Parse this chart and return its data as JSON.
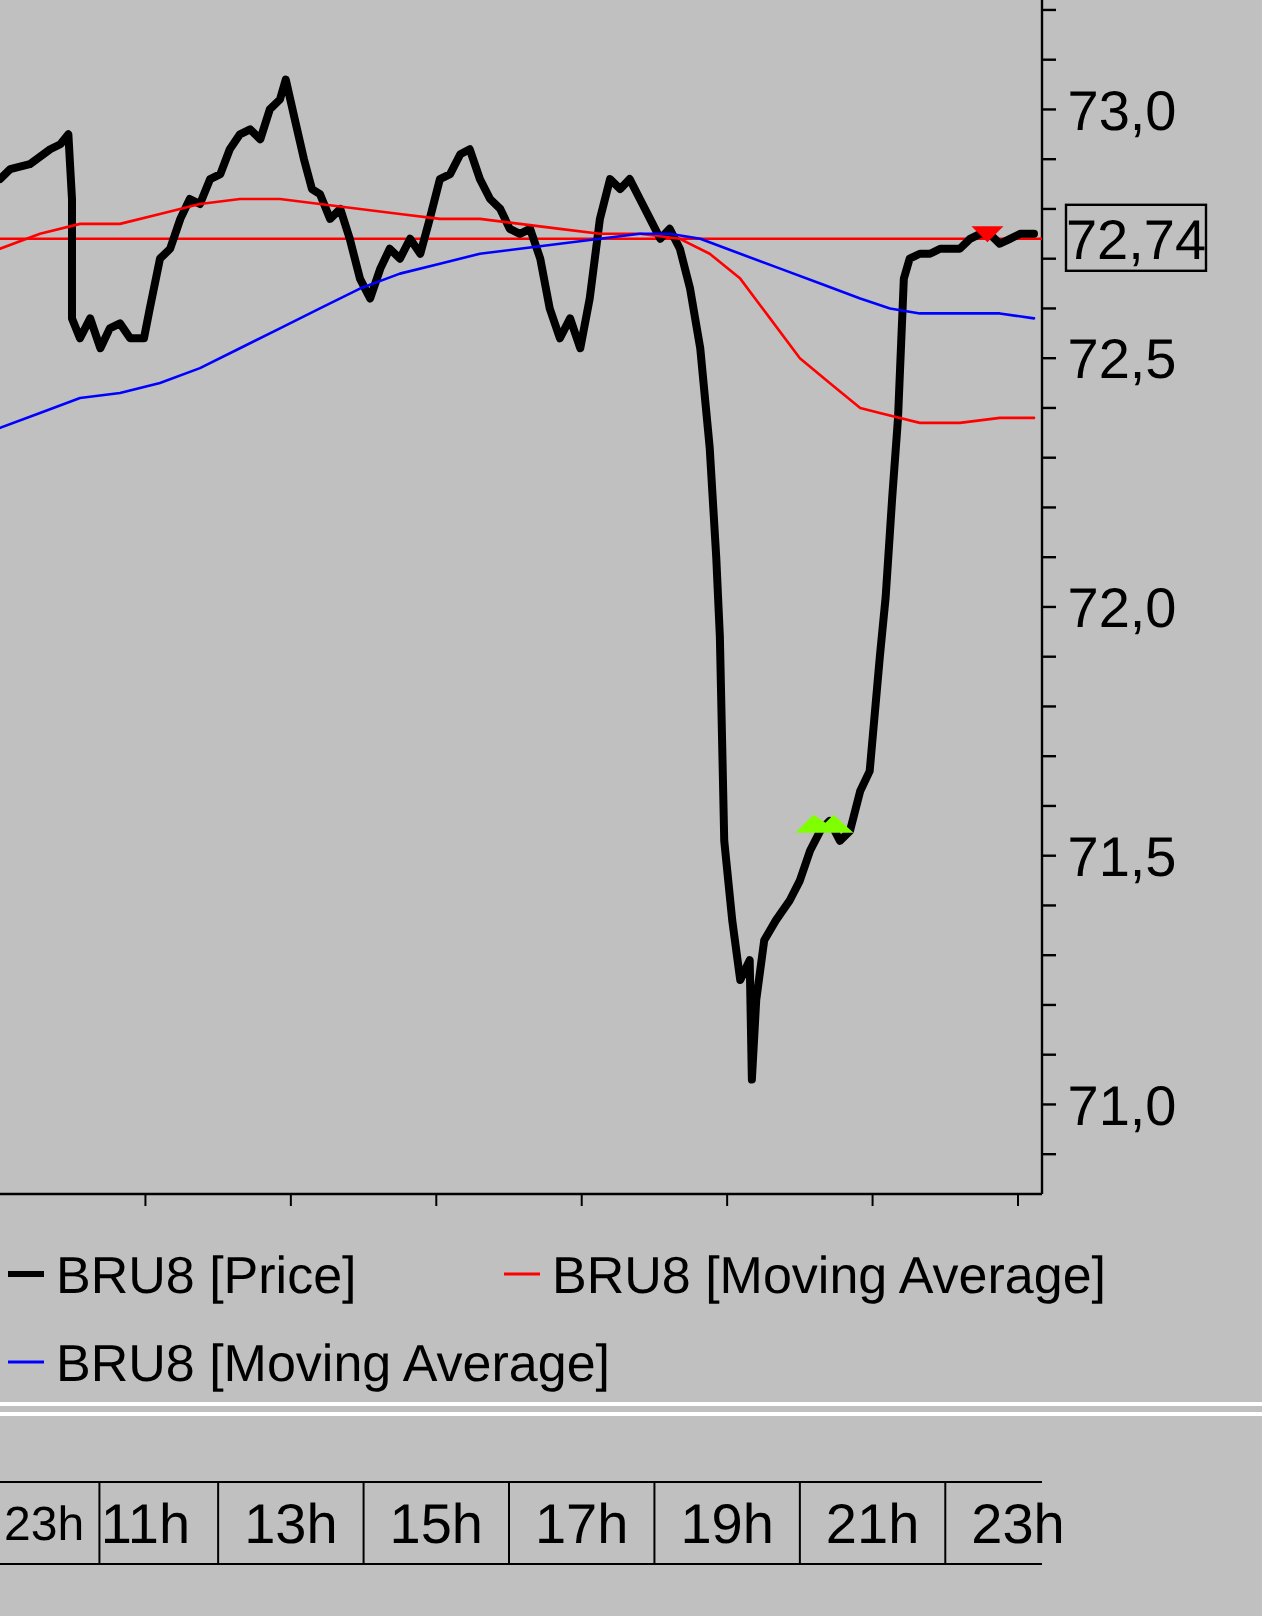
{
  "chart_data": {
    "type": "line",
    "xlim": [
      9,
      23.33
    ],
    "annotations": [
      "23h"
    ],
    "ylim": [
      70.82,
      73.22
    ],
    "xticks": [
      {
        "value": 11,
        "label": "11h"
      },
      {
        "value": 13,
        "label": "13h"
      },
      {
        "value": 15,
        "label": "15h"
      },
      {
        "value": 17,
        "label": "17h"
      },
      {
        "value": 19,
        "label": "19h"
      },
      {
        "value": 21,
        "label": "21h"
      },
      {
        "value": 23,
        "label": "23h"
      }
    ],
    "yticks": [
      {
        "value": 70.9,
        "label": null
      },
      {
        "value": 71.0,
        "label": "71,0"
      },
      {
        "value": 71.1,
        "label": null
      },
      {
        "value": 71.2,
        "label": null
      },
      {
        "value": 71.3,
        "label": null
      },
      {
        "value": 71.4,
        "label": null
      },
      {
        "value": 71.5,
        "label": "71,5"
      },
      {
        "value": 71.6,
        "label": null
      },
      {
        "value": 71.7,
        "label": null
      },
      {
        "value": 71.8,
        "label": null
      },
      {
        "value": 71.9,
        "label": null
      },
      {
        "value": 72.0,
        "label": "72,0"
      },
      {
        "value": 72.1,
        "label": null
      },
      {
        "value": 72.2,
        "label": null
      },
      {
        "value": 72.3,
        "label": null
      },
      {
        "value": 72.4,
        "label": null
      },
      {
        "value": 72.5,
        "label": "72,5"
      },
      {
        "value": 72.6,
        "label": null
      },
      {
        "value": 72.7,
        "label": null
      },
      {
        "value": 72.8,
        "label": null
      },
      {
        "value": 72.9,
        "label": null
      },
      {
        "value": 73.0,
        "label": "73,0"
      },
      {
        "value": 73.1,
        "label": null
      },
      {
        "value": 73.2,
        "label": null
      }
    ],
    "grid": false,
    "legend": "bottom",
    "marker": "none",
    "line_style": "solid",
    "ref_lines": [
      {
        "axis": "y",
        "value": 72.74,
        "label": "72,74",
        "color": "#ff0000"
      }
    ],
    "series": [
      {
        "name": "BRU8 [Price]",
        "color": "#000000",
        "x": [
          9.0,
          9.14,
          9.41,
          9.69,
          9.83,
          9.94,
          9.99,
          9.99,
          10.1,
          10.24,
          10.38,
          10.51,
          10.65,
          10.79,
          10.98,
          11.06,
          11.2,
          11.34,
          11.48,
          11.61,
          11.75,
          11.89,
          12.03,
          12.16,
          12.3,
          12.44,
          12.58,
          12.71,
          12.85,
          12.93,
          13.07,
          13.18,
          13.29,
          13.4,
          13.54,
          13.68,
          13.81,
          13.95,
          14.09,
          14.23,
          14.36,
          14.5,
          14.64,
          14.78,
          14.91,
          15.05,
          15.19,
          15.33,
          15.46,
          15.6,
          15.74,
          15.88,
          16.01,
          16.15,
          16.29,
          16.43,
          16.56,
          16.7,
          16.84,
          16.98,
          17.11,
          17.25,
          17.39,
          17.53,
          17.66,
          17.8,
          17.94,
          18.08,
          18.21,
          18.35,
          18.49,
          18.63,
          18.76,
          18.85,
          18.9,
          18.96,
          19.07,
          19.18,
          19.31,
          19.34,
          19.4,
          19.51,
          19.67,
          19.86,
          20.0,
          20.14,
          20.28,
          20.41,
          20.55,
          20.69,
          20.83,
          20.96,
          21.1,
          21.18,
          21.27,
          21.35,
          21.43,
          21.51,
          21.65,
          21.79,
          21.93,
          22.06,
          22.2,
          22.34,
          22.48,
          22.61,
          22.75,
          22.89,
          23.03,
          23.22
        ],
        "values": [
          72.86,
          72.88,
          72.89,
          72.92,
          72.93,
          72.95,
          72.82,
          72.58,
          72.54,
          72.58,
          72.52,
          72.56,
          72.57,
          72.54,
          72.54,
          72.6,
          72.7,
          72.72,
          72.78,
          72.82,
          72.81,
          72.86,
          72.87,
          72.92,
          72.95,
          72.96,
          72.94,
          73.0,
          73.02,
          73.06,
          72.97,
          72.9,
          72.84,
          72.83,
          72.78,
          72.8,
          72.74,
          72.66,
          72.62,
          72.68,
          72.72,
          72.7,
          72.74,
          72.71,
          72.78,
          72.86,
          72.87,
          72.91,
          72.92,
          72.86,
          72.82,
          72.8,
          72.76,
          72.75,
          72.76,
          72.7,
          72.6,
          72.54,
          72.58,
          72.52,
          72.62,
          72.78,
          72.86,
          72.84,
          72.86,
          72.82,
          72.78,
          72.74,
          72.76,
          72.72,
          72.64,
          72.52,
          72.32,
          72.1,
          71.94,
          71.53,
          71.37,
          71.25,
          71.29,
          71.05,
          71.21,
          71.33,
          71.37,
          71.41,
          71.45,
          71.51,
          71.55,
          71.57,
          71.53,
          71.55,
          71.63,
          71.67,
          71.9,
          72.02,
          72.22,
          72.38,
          72.66,
          72.7,
          72.71,
          72.71,
          72.72,
          72.72,
          72.72,
          72.74,
          72.75,
          72.75,
          72.73,
          72.74,
          72.75,
          72.75
        ]
      },
      {
        "name": "BRU8 [Moving Average]",
        "color": "#ff0000",
        "x": [
          9.0,
          9.55,
          10.1,
          10.65,
          11.2,
          11.75,
          12.3,
          12.85,
          13.4,
          13.95,
          14.5,
          15.05,
          15.6,
          16.15,
          16.7,
          17.25,
          17.8,
          18.35,
          18.76,
          19.18,
          19.59,
          20.0,
          20.41,
          20.83,
          21.1,
          21.65,
          22.2,
          22.75,
          23.22
        ],
        "values": [
          72.72,
          72.75,
          72.77,
          72.77,
          72.79,
          72.81,
          72.82,
          72.82,
          72.81,
          72.8,
          72.79,
          72.78,
          72.78,
          72.77,
          72.76,
          72.75,
          72.75,
          72.74,
          72.71,
          72.66,
          72.58,
          72.5,
          72.45,
          72.4,
          72.39,
          72.37,
          72.37,
          72.38,
          72.38
        ]
      },
      {
        "name": "BRU8 [Moving Average]",
        "color": "#0000ff",
        "x": [
          9.0,
          9.55,
          10.1,
          10.65,
          11.2,
          11.75,
          12.3,
          12.85,
          13.4,
          13.95,
          14.5,
          15.05,
          15.6,
          16.15,
          16.7,
          17.25,
          17.8,
          18.21,
          18.63,
          19.18,
          19.73,
          20.28,
          20.83,
          21.24,
          21.65,
          22.2,
          22.75,
          23.22
        ],
        "values": [
          72.36,
          72.39,
          72.42,
          72.43,
          72.45,
          72.48,
          72.52,
          72.56,
          72.6,
          72.64,
          72.67,
          72.69,
          72.71,
          72.72,
          72.73,
          72.74,
          72.75,
          72.75,
          72.74,
          72.71,
          72.68,
          72.65,
          72.62,
          72.6,
          72.59,
          72.59,
          72.59,
          72.58
        ]
      }
    ]
  }
}
